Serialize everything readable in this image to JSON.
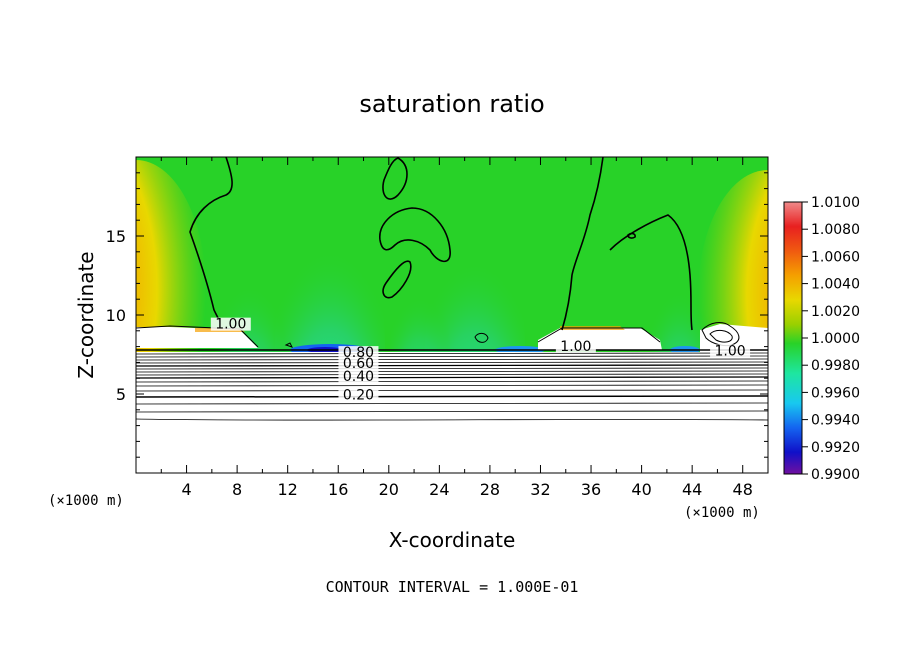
{
  "chart_data": {
    "type": "heatmap",
    "title": "saturation ratio",
    "xlabel": "X-coordinate",
    "ylabel": "Z-coordinate",
    "x_unit": "(×1000 m)",
    "z_unit": "(×1000 m)",
    "xlim": [
      0,
      50
    ],
    "ylim": [
      0,
      20
    ],
    "x_ticks": [
      4,
      8,
      12,
      16,
      20,
      24,
      28,
      32,
      36,
      40,
      44,
      48
    ],
    "y_ticks": [
      5,
      10,
      15
    ],
    "footer": "CONTOUR INTERVAL = 1.000E-01",
    "colorbar": {
      "labels": [
        "1.0100",
        "1.0080",
        "1.0060",
        "1.0040",
        "1.0020",
        "1.0000",
        "0.9980",
        "0.9960",
        "0.9940",
        "0.9920",
        "0.9900"
      ],
      "colors": [
        "#f08a8a",
        "#e82020",
        "#f05a10",
        "#f5a000",
        "#e8d800",
        "#9ad000",
        "#28d228",
        "#1ee6a0",
        "#18c8f0",
        "#1464f0",
        "#1010c8",
        "#7010a0"
      ]
    },
    "contour_labels": [
      {
        "text": "1.00",
        "x": 7.5,
        "z": 9.2
      },
      {
        "text": "0.80",
        "x": 17.6,
        "z": 7.4
      },
      {
        "text": "0.60",
        "x": 17.6,
        "z": 6.7
      },
      {
        "text": "0.40",
        "x": 17.6,
        "z": 5.9
      },
      {
        "text": "0.20",
        "x": 17.6,
        "z": 4.7
      },
      {
        "text": "1.00",
        "x": 34.8,
        "z": 7.8
      },
      {
        "text": "1.00",
        "x": 47.0,
        "z": 7.5
      }
    ]
  }
}
